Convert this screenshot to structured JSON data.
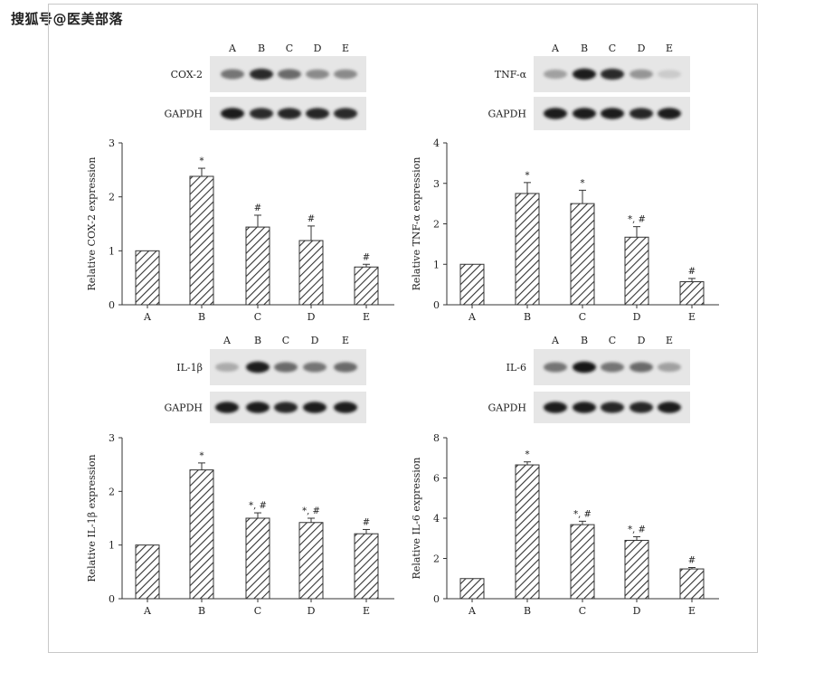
{
  "watermark": "搜狐号@医美部落",
  "lanes": [
    "A",
    "B",
    "C",
    "D",
    "E"
  ],
  "chart_data": [
    {
      "type": "bar",
      "panel": "COX-2",
      "blot_labels": [
        "COX-2",
        "GAPDH"
      ],
      "ylabel": "Relative COX-2 expression",
      "categories": [
        "A",
        "B",
        "C",
        "D",
        "E"
      ],
      "values": [
        1.0,
        2.38,
        1.44,
        1.19,
        0.7
      ],
      "errors": [
        0,
        0.15,
        0.22,
        0.27,
        0.05
      ],
      "annotations": [
        "",
        "*",
        "#",
        "#",
        "#"
      ],
      "ylim": [
        0,
        3
      ],
      "yticks": [
        0,
        1,
        2,
        3
      ]
    },
    {
      "type": "bar",
      "panel": "TNF-α",
      "blot_labels": [
        "TNF-α",
        "GAPDH"
      ],
      "ylabel": "Relative TNF-α expression",
      "categories": [
        "A",
        "B",
        "C",
        "D",
        "E"
      ],
      "values": [
        1.0,
        2.75,
        2.5,
        1.67,
        0.57
      ],
      "errors": [
        0,
        0.27,
        0.33,
        0.26,
        0.08
      ],
      "annotations": [
        "",
        "*",
        "*",
        "*, #",
        "#"
      ],
      "ylim": [
        0,
        4
      ],
      "yticks": [
        0,
        1,
        2,
        3,
        4
      ]
    },
    {
      "type": "bar",
      "panel": "IL-1β",
      "blot_labels": [
        "IL-1β",
        "GAPDH"
      ],
      "ylabel": "Relative IL-1β expression",
      "categories": [
        "A",
        "B",
        "C",
        "D",
        "E"
      ],
      "values": [
        1.0,
        2.4,
        1.5,
        1.42,
        1.21
      ],
      "errors": [
        0,
        0.13,
        0.1,
        0.08,
        0.08
      ],
      "annotations": [
        "",
        "*",
        "*, #",
        "*, #",
        "#"
      ],
      "ylim": [
        0,
        3
      ],
      "yticks": [
        0,
        1,
        2,
        3
      ]
    },
    {
      "type": "bar",
      "panel": "IL-6",
      "blot_labels": [
        "IL-6",
        "GAPDH"
      ],
      "ylabel": "Relative IL-6 expression",
      "categories": [
        "A",
        "B",
        "C",
        "D",
        "E"
      ],
      "values": [
        1.0,
        6.65,
        3.68,
        2.9,
        1.48
      ],
      "errors": [
        0,
        0.15,
        0.17,
        0.18,
        0.07
      ],
      "annotations": [
        "",
        "*",
        "*, #",
        "*, #",
        "#"
      ],
      "ylim": [
        0,
        8
      ],
      "yticks": [
        0,
        2,
        4,
        6,
        8
      ]
    }
  ]
}
